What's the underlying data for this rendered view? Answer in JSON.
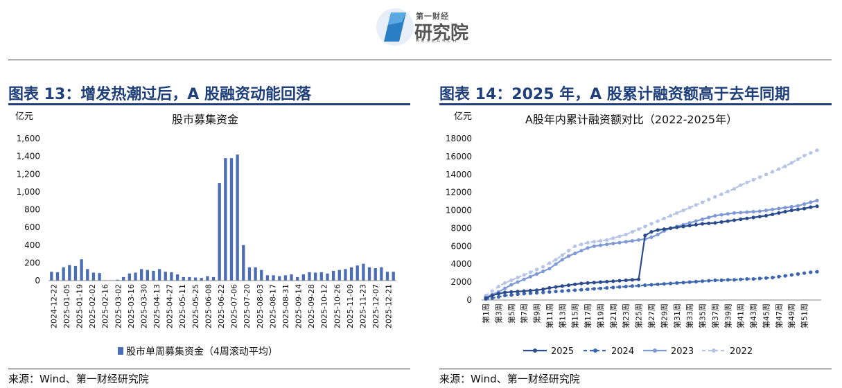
{
  "header": {
    "logo_top": "第一财经",
    "logo_main": "研究院",
    "logo_en": "RESEARCH"
  },
  "figures": [
    {
      "title": "图表 13：增发热潮过后，A 股融资动能回落",
      "source": "来源：Wind、第一财经研究院"
    },
    {
      "title": "图表 14：2025 年，A 股累计融资额高于去年同期",
      "source": "来源：Wind、第一财经研究院"
    }
  ],
  "colors": {
    "title_blue": "#1f3f7a",
    "bar": "#4a6db3",
    "s2025": "#2b4c8c",
    "s2024": "#3d66b0",
    "s2023": "#7f9ad6",
    "s2022": "#b6c4e8"
  },
  "chart_data": [
    {
      "type": "bar",
      "title": "股市募集资金",
      "unit_label": "亿元",
      "ylim": [
        0,
        1600
      ],
      "yticks": [
        "0",
        "200",
        "400",
        "600",
        "800",
        "1,000",
        "1,200",
        "1,400",
        "1,600"
      ],
      "grid": false,
      "legend_position": "bottom",
      "series": [
        {
          "name": "股市单周募集资金（4周滚动平均）",
          "values": [
            100,
            95,
            150,
            175,
            165,
            240,
            130,
            90,
            85,
            5,
            5,
            10,
            40,
            80,
            90,
            130,
            120,
            110,
            130,
            100,
            95,
            70,
            40,
            40,
            35,
            30,
            50,
            40,
            1100,
            1380,
            1380,
            1420,
            400,
            150,
            150,
            120,
            60,
            60,
            50,
            60,
            70,
            40,
            70,
            95,
            90,
            95,
            80,
            110,
            120,
            130,
            150,
            170,
            190,
            150,
            140,
            150,
            100,
            100
          ]
        }
      ],
      "x_tick_labels": [
        "2024-12-22",
        "2025-01-05",
        "2025-01-19",
        "2025-02-02",
        "2025-02-16",
        "2025-03-02",
        "2025-03-16",
        "2025-03-30",
        "2025-04-13",
        "2025-04-27",
        "2025-05-11",
        "2025-05-25",
        "2025-06-08",
        "2025-06-22",
        "2025-07-06",
        "2025-07-20",
        "2025-08-03",
        "2025-08-17",
        "2025-08-31",
        "2025-09-14",
        "2025-09-28",
        "2025-10-12",
        "2025-10-26",
        "2025-11-09",
        "2025-11-23",
        "2025-12-07",
        "2025-12-21"
      ]
    },
    {
      "type": "line",
      "title": "A股年内累计融资额对比（2022-2025年）",
      "unit_label": "亿元",
      "ylim": [
        0,
        18000
      ],
      "yticks": [
        "0",
        "2000",
        "4000",
        "6000",
        "8000",
        "10000",
        "12000",
        "14000",
        "16000",
        "18000"
      ],
      "grid": false,
      "legend_position": "bottom",
      "x_tick_labels": [
        "第1周",
        "第3周",
        "第5周",
        "第7周",
        "第9周",
        "第11周",
        "第13周",
        "第15周",
        "第17周",
        "第19周",
        "第21周",
        "第23周",
        "第25周",
        "第27周",
        "第29周",
        "第31周",
        "第33周",
        "第35周",
        "第37周",
        "第39周",
        "第41周",
        "第43周",
        "第45周",
        "第47周",
        "第49周",
        "第51周"
      ],
      "series": [
        {
          "name": "2025",
          "dash": "solid",
          "values": [
            200,
            500,
            700,
            850,
            900,
            950,
            1000,
            1050,
            1100,
            1200,
            1350,
            1450,
            1550,
            1650,
            1750,
            1850,
            1900,
            1950,
            2000,
            2050,
            2100,
            2150,
            2200,
            2250,
            2300,
            7200,
            7600,
            7800,
            7900,
            8000,
            8100,
            8200,
            8300,
            8400,
            8500,
            8550,
            8600,
            8700,
            8800,
            8900,
            9000,
            9100,
            9200,
            9300,
            9400,
            9550,
            9700,
            9850,
            10000,
            10100,
            10200,
            10350,
            10450
          ]
        },
        {
          "name": "2024",
          "dash": "dash",
          "values": [
            100,
            200,
            350,
            500,
            550,
            650,
            700,
            750,
            800,
            850,
            900,
            950,
            1000,
            1050,
            1100,
            1150,
            1200,
            1250,
            1300,
            1350,
            1400,
            1450,
            1500,
            1550,
            1600,
            1650,
            1700,
            1750,
            1800,
            1850,
            1900,
            1950,
            2000,
            2050,
            2100,
            2150,
            2200,
            2200,
            2250,
            2250,
            2300,
            2350,
            2350,
            2400,
            2450,
            2500,
            2600,
            2700,
            2800,
            2900,
            3000,
            3100,
            3150
          ]
        },
        {
          "name": "2023",
          "dash": "solid",
          "values": [
            300,
            600,
            900,
            1300,
            1700,
            2000,
            2300,
            2600,
            2900,
            3200,
            3500,
            4000,
            4500,
            4900,
            5200,
            5500,
            5800,
            6000,
            6100,
            6200,
            6300,
            6400,
            6500,
            6600,
            6700,
            6800,
            7000,
            7300,
            7700,
            8000,
            8200,
            8400,
            8600,
            8800,
            9000,
            9200,
            9400,
            9500,
            9600,
            9700,
            9750,
            9800,
            9850,
            9900,
            10000,
            10100,
            10200,
            10300,
            10400,
            10500,
            10700,
            10900,
            11100
          ]
        },
        {
          "name": "2022",
          "dash": "dash",
          "values": [
            500,
            1000,
            1500,
            1900,
            2200,
            2500,
            2800,
            3100,
            3400,
            3700,
            4100,
            4500,
            5000,
            5500,
            6000,
            6200,
            6400,
            6500,
            6600,
            6700,
            6900,
            7100,
            7300,
            7600,
            7900,
            8200,
            8500,
            8800,
            9100,
            9400,
            9700,
            10000,
            10300,
            10600,
            10900,
            11200,
            11500,
            11800,
            12100,
            12400,
            12800,
            13100,
            13400,
            13700,
            14000,
            14300,
            14600,
            14900,
            15300,
            15700,
            16100,
            16400,
            16700
          ]
        }
      ]
    }
  ]
}
